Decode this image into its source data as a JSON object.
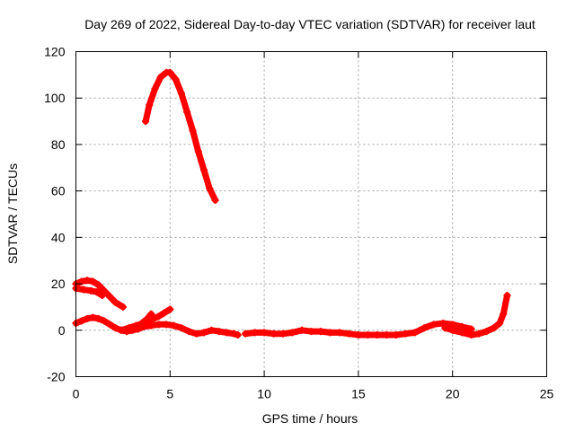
{
  "chart_data": {
    "type": "line",
    "title": "Day 269 of 2022, Sidereal Day-to-day VTEC variation (SDTVAR) for receiver laut",
    "xlabel": "GPS time / hours",
    "ylabel": "SDTVAR / TECUs",
    "xlim": [
      0,
      25
    ],
    "ylim": [
      -20,
      120
    ],
    "xticks": [
      0,
      5,
      10,
      15,
      20,
      25
    ],
    "yticks": [
      -20,
      0,
      20,
      40,
      60,
      80,
      100,
      120
    ],
    "grid": true,
    "series_color": "#ff0000",
    "series": [
      {
        "name": "arc-peak",
        "points": [
          [
            3.7,
            90
          ],
          [
            3.9,
            97
          ],
          [
            4.2,
            104
          ],
          [
            4.5,
            109
          ],
          [
            4.8,
            111
          ],
          [
            5.0,
            111
          ],
          [
            5.3,
            108
          ],
          [
            5.6,
            102
          ],
          [
            5.9,
            94
          ],
          [
            6.2,
            86
          ],
          [
            6.5,
            77
          ],
          [
            6.8,
            69
          ],
          [
            7.1,
            61
          ],
          [
            7.4,
            56
          ]
        ]
      },
      {
        "name": "arc-upper-1",
        "points": [
          [
            0.0,
            20
          ],
          [
            0.3,
            21
          ],
          [
            0.6,
            21.5
          ],
          [
            0.9,
            21
          ],
          [
            1.2,
            19.5
          ],
          [
            1.5,
            17
          ],
          [
            1.8,
            14.5
          ],
          [
            2.1,
            12
          ],
          [
            2.5,
            10
          ]
        ]
      },
      {
        "name": "arc-upper-2",
        "points": [
          [
            0.0,
            18
          ],
          [
            0.4,
            17.5
          ],
          [
            0.8,
            17
          ],
          [
            1.1,
            16.5
          ],
          [
            1.4,
            15
          ]
        ]
      },
      {
        "name": "arc-low-1",
        "points": [
          [
            0.0,
            3
          ],
          [
            0.3,
            4
          ],
          [
            0.6,
            5
          ],
          [
            0.9,
            5.5
          ],
          [
            1.2,
            5
          ],
          [
            1.5,
            4
          ],
          [
            1.8,
            2.5
          ],
          [
            2.1,
            1
          ],
          [
            2.4,
            0
          ],
          [
            2.7,
            -0.5
          ],
          [
            3.0,
            0
          ],
          [
            3.3,
            0.5
          ],
          [
            3.6,
            1.5
          ],
          [
            4.0,
            2
          ],
          [
            4.4,
            2.5
          ],
          [
            4.8,
            2.5
          ],
          [
            5.2,
            2
          ],
          [
            5.6,
            1
          ],
          [
            6.0,
            -0.5
          ],
          [
            6.4,
            -1.5
          ],
          [
            6.8,
            -1
          ],
          [
            7.2,
            0
          ],
          [
            7.6,
            -0.5
          ],
          [
            8.0,
            -1
          ],
          [
            8.4,
            -1.5
          ],
          [
            8.6,
            -2
          ]
        ]
      },
      {
        "name": "arc-low-2",
        "points": [
          [
            2.4,
            0
          ],
          [
            2.8,
            1
          ],
          [
            3.2,
            2
          ],
          [
            3.6,
            3
          ],
          [
            4.0,
            4.5
          ],
          [
            4.4,
            6
          ],
          [
            4.7,
            7.5
          ],
          [
            5.0,
            9
          ]
        ]
      },
      {
        "name": "arc-low-3",
        "points": [
          [
            3.5,
            3
          ],
          [
            3.8,
            5
          ],
          [
            4.0,
            7
          ]
        ]
      },
      {
        "name": "arc-low-4",
        "points": [
          [
            9.0,
            -1.5
          ],
          [
            9.5,
            -1
          ],
          [
            10.0,
            -1
          ],
          [
            10.5,
            -1.5
          ],
          [
            11.0,
            -1.5
          ],
          [
            11.5,
            -1
          ],
          [
            12.0,
            0
          ],
          [
            12.5,
            -0.5
          ],
          [
            13.0,
            -0.5
          ],
          [
            13.5,
            -1
          ],
          [
            14.0,
            -1
          ],
          [
            14.5,
            -1.5
          ],
          [
            15.0,
            -2
          ],
          [
            15.5,
            -2
          ],
          [
            16.0,
            -2
          ],
          [
            16.5,
            -2
          ],
          [
            17.0,
            -2
          ],
          [
            17.5,
            -1.5
          ],
          [
            18.0,
            -1
          ],
          [
            18.5,
            1
          ],
          [
            19.0,
            2.5
          ],
          [
            19.5,
            3
          ],
          [
            20.0,
            2.5
          ],
          [
            20.5,
            1.5
          ],
          [
            21.0,
            0.5
          ]
        ]
      },
      {
        "name": "arc-low-5",
        "points": [
          [
            19.6,
            1
          ],
          [
            20.0,
            0
          ],
          [
            20.5,
            -1
          ],
          [
            21.0,
            -2
          ],
          [
            21.4,
            -1.5
          ],
          [
            21.8,
            -0.5
          ],
          [
            22.2,
            1
          ],
          [
            22.5,
            3
          ],
          [
            22.7,
            7
          ],
          [
            22.9,
            15
          ]
        ]
      }
    ]
  }
}
